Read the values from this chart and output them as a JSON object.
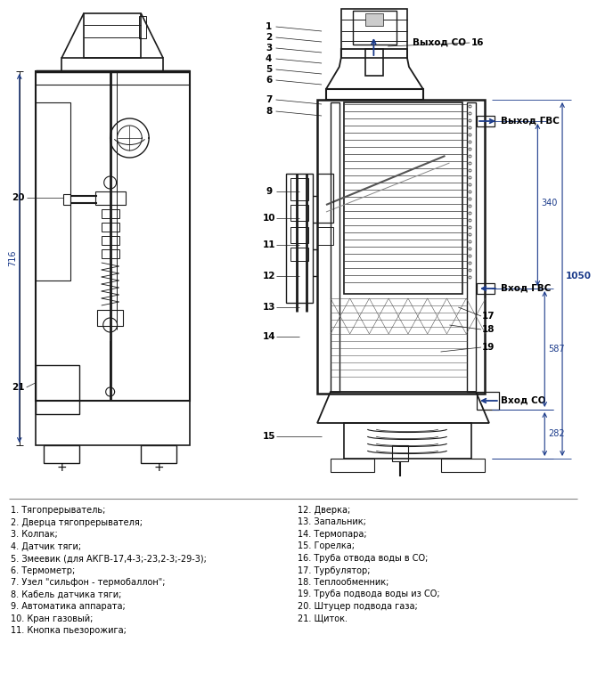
{
  "bg_color": "#ffffff",
  "line_color": "#1a1a1a",
  "arrow_color": "#1a3a8a",
  "legend_items_left": [
    "1. Тягопрерыватель;",
    "2. Дверца тягопрерывателя;",
    "3. Колпак;",
    "4. Датчик тяги;",
    "5. Змеевик (для АКГВ-17,4-3;-23,2-3;-29-3);",
    "6. Термометр;",
    "7. Узел \"сильфон - термобаллон\";",
    "8. Кабель датчика тяги;",
    "9. Автоматика аппарата;",
    "10. Кран газовый;",
    "11. Кнопка пьезорожига;"
  ],
  "legend_items_right": [
    "12. Дверка;",
    "13. Запальник;",
    "14. Термопара;",
    "15. Горелка;",
    "16. Труба отвода воды в СО;",
    "17. Турбулятор;",
    "18. Теплообменник;",
    "19. Труба подвода воды из СО;",
    "20. Штуцер подвода газа;",
    "21. Щиток."
  ],
  "dim_340": "340",
  "dim_1050": "1050",
  "dim_587": "587",
  "dim_282": "282",
  "dim_716": "716",
  "label_vyhod_co": "Выход СО",
  "label_vyhod_gvs": "Выход ГВС",
  "label_vhod_gvs": "Вход ГВС",
  "label_vhod_co": "Вход СО"
}
